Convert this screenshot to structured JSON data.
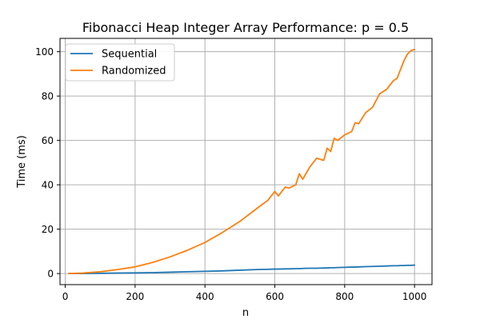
{
  "chart_data": {
    "type": "line",
    "title": "Fibonacci Heap Integer Array Performance: p = 0.5",
    "xlabel": "n",
    "ylabel": "Time (ms)",
    "xlim": [
      -15,
      1050
    ],
    "ylim": [
      -5,
      106
    ],
    "x_ticks": [
      0,
      200,
      400,
      600,
      800,
      1000
    ],
    "y_ticks": [
      0,
      20,
      40,
      60,
      80,
      100
    ],
    "grid": true,
    "legend_position": "upper-left",
    "x": [
      10,
      50,
      100,
      150,
      200,
      250,
      300,
      350,
      400,
      450,
      500,
      550,
      580,
      600,
      610,
      630,
      640,
      660,
      670,
      680,
      700,
      720,
      740,
      750,
      760,
      770,
      780,
      800,
      820,
      830,
      840,
      860,
      880,
      900,
      920,
      940,
      950,
      960,
      970,
      980,
      990,
      1000
    ],
    "series": [
      {
        "name": "Sequential",
        "color": "#1f77b4",
        "values": [
          0.0,
          0.0,
          0.1,
          0.2,
          0.3,
          0.4,
          0.6,
          0.8,
          1.0,
          1.2,
          1.5,
          1.8,
          1.9,
          2.0,
          2.0,
          2.1,
          2.1,
          2.2,
          2.2,
          2.3,
          2.4,
          2.4,
          2.5,
          2.5,
          2.6,
          2.6,
          2.7,
          2.8,
          2.9,
          2.9,
          3.0,
          3.1,
          3.2,
          3.3,
          3.4,
          3.5,
          3.5,
          3.6,
          3.6,
          3.7,
          3.7,
          3.8
        ]
      },
      {
        "name": "Randomized",
        "color": "#ff7f0e",
        "values": [
          0.0,
          0.2,
          0.8,
          1.8,
          3.0,
          5.0,
          7.5,
          10.5,
          14.0,
          18.5,
          23.5,
          29.5,
          33.0,
          37.0,
          35.0,
          39.0,
          38.5,
          40.0,
          45.0,
          42.5,
          48.0,
          52.0,
          51.0,
          56.5,
          55.0,
          61.0,
          60.0,
          62.5,
          64.0,
          68.0,
          67.5,
          72.5,
          75.0,
          81.0,
          83.0,
          87.0,
          88.0,
          92.0,
          96.0,
          99.0,
          100.5,
          101.0
        ]
      }
    ]
  }
}
